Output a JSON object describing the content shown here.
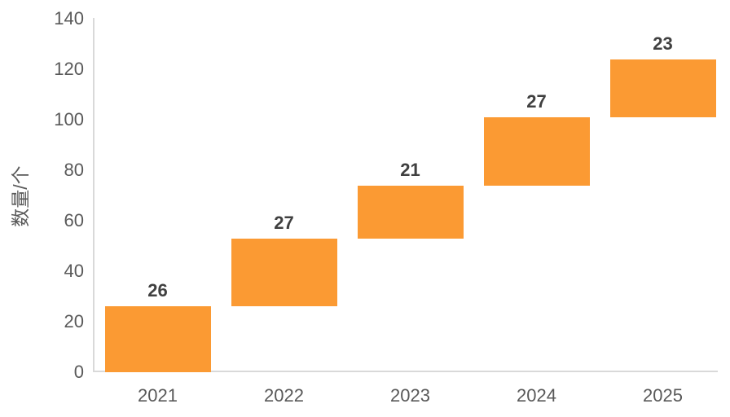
{
  "chart_data": {
    "type": "bar",
    "subtype": "waterfall-floating-bars",
    "title": "",
    "xlabel": "",
    "ylabel": "数量/个",
    "categories": [
      "2021",
      "2022",
      "2023",
      "2024",
      "2025"
    ],
    "values": [
      26,
      27,
      21,
      27,
      23
    ],
    "data_labels": [
      "26",
      "27",
      "21",
      "27",
      "23"
    ],
    "bar_spans": [
      {
        "category": "2021",
        "start": 0,
        "end": 26
      },
      {
        "category": "2022",
        "start": 26,
        "end": 53
      },
      {
        "category": "2023",
        "start": 53,
        "end": 74
      },
      {
        "category": "2024",
        "start": 74,
        "end": 101
      },
      {
        "category": "2025",
        "start": 101,
        "end": 124
      }
    ],
    "ylim": [
      0,
      140
    ],
    "yticks": [
      0,
      20,
      40,
      60,
      80,
      100,
      120,
      140
    ],
    "grid": false,
    "legend": false,
    "colors": {
      "bar": "#fb9a33",
      "data_label": "#404040",
      "axis_text": "#595959",
      "axis_line": "#d9d9d9"
    }
  }
}
